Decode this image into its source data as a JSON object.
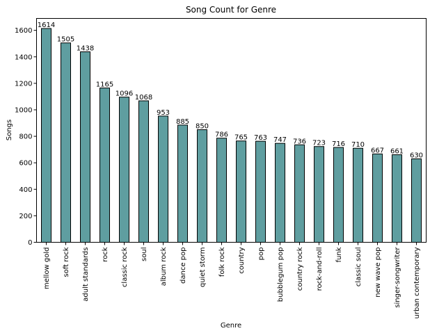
{
  "chart_data": {
    "type": "bar",
    "title": "Song Count for Genre",
    "xlabel": "Genre",
    "ylabel": "Songs",
    "ylim": [
      0,
      1690
    ],
    "yticks": [
      0,
      200,
      400,
      600,
      800,
      1000,
      1200,
      1400,
      1600
    ],
    "grid": false,
    "bar_color": "#5f9ea0",
    "edge_color": "#000000",
    "categories": [
      "mellow gold",
      "soft rock",
      "adult standards",
      "rock",
      "classic rock",
      "soul",
      "album rock",
      "dance pop",
      "quiet storm",
      "folk rock",
      "country",
      "pop",
      "bubblegum pop",
      "country rock",
      "rock-and-roll",
      "funk",
      "classic soul",
      "new wave pop",
      "singer-songwriter",
      "urban contemporary"
    ],
    "values": [
      1614,
      1505,
      1438,
      1165,
      1096,
      1068,
      953,
      885,
      850,
      786,
      765,
      763,
      747,
      736,
      723,
      716,
      710,
      667,
      661,
      630
    ]
  }
}
